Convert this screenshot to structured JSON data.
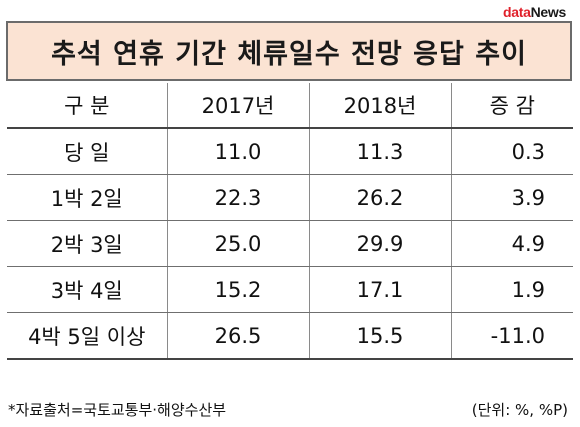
{
  "logo": {
    "part1": "data",
    "part2": "News"
  },
  "title": "추석 연휴 기간 체류일수 전망 응답 추이",
  "table": {
    "headers": [
      "구 분",
      "2017년",
      "2018년",
      "증 감"
    ],
    "rows": [
      {
        "label": "당 일",
        "y2017": "11.0",
        "y2018": "11.3",
        "change": "0.3"
      },
      {
        "label": "1박 2일",
        "y2017": "22.3",
        "y2018": "26.2",
        "change": "3.9"
      },
      {
        "label": "2박 3일",
        "y2017": "25.0",
        "y2018": "29.9",
        "change": "4.9"
      },
      {
        "label": "3박 4일",
        "y2017": "15.2",
        "y2018": "17.1",
        "change": "1.9"
      },
      {
        "label": "4박 5일 이상",
        "y2017": "26.5",
        "y2018": "15.5",
        "change": "-11.0"
      }
    ]
  },
  "footnote": {
    "source": "*자료출처=국토교통부·해양수산부",
    "unit": "(단위: %, %P)"
  }
}
